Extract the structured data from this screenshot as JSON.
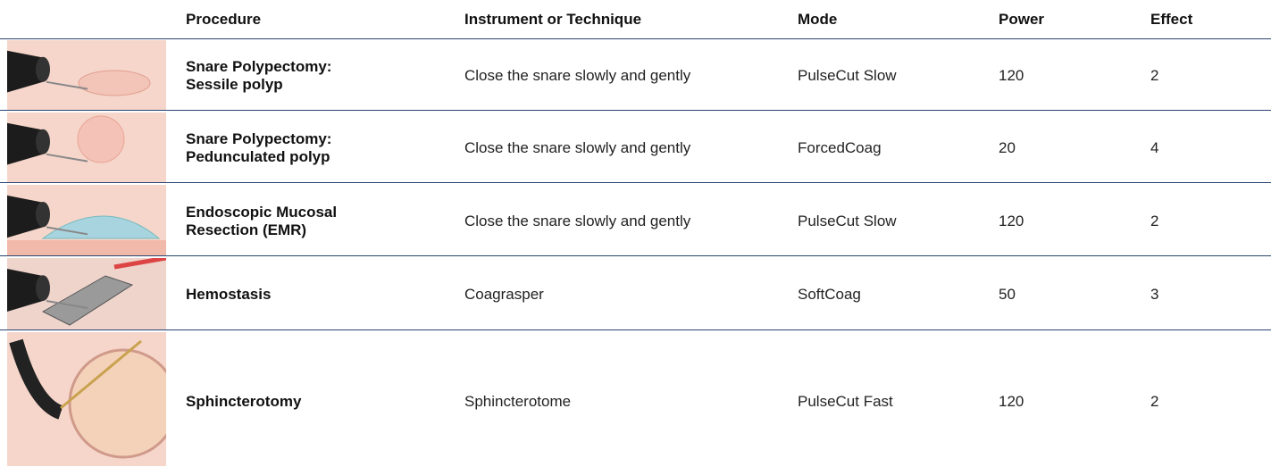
{
  "table": {
    "columns": [
      "Procedure",
      "Instrument or Technique",
      "Mode",
      "Power",
      "Effect"
    ],
    "rows": [
      [
        "Snare Polypectomy: Sessile polyp",
        "Close the snare slowly and gently",
        "PulseCut Slow",
        120,
        2
      ],
      [
        "Snare Polypectomy: Pedunculated polyp",
        "Close the snare slowly and gently",
        "ForcedCoag",
        20,
        4
      ],
      [
        "Endoscopic Mucosal Resection (EMR)",
        "Close the snare slowly and gently",
        "PulseCut Slow",
        120,
        2
      ],
      [
        "Hemostasis",
        "Coagrasper",
        "SoftCoag",
        50,
        3
      ],
      [
        "Sphincterotomy",
        "Sphincterotome",
        "PulseCut Fast",
        120,
        2
      ]
    ]
  }
}
